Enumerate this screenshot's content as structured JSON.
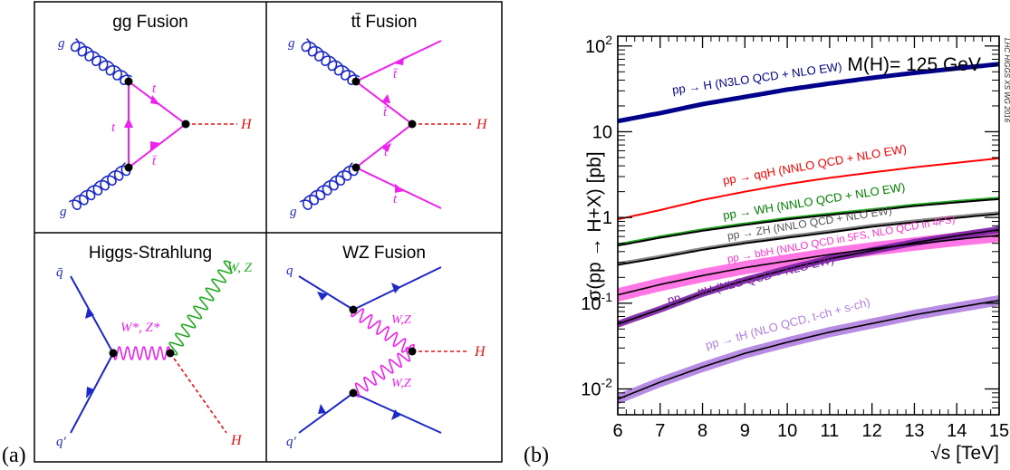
{
  "panel_a": {
    "label": "(a)",
    "diagrams": [
      {
        "title": "gg Fusion",
        "labels": {
          "g_top": "g",
          "g_bottom": "g",
          "t_upper": "t",
          "t_left": "t",
          "tbar": "t̄",
          "H": "H"
        }
      },
      {
        "title": "tt̄ Fusion",
        "labels": {
          "g_top": "g",
          "g_bottom": "g",
          "tbar_upper": "t̄",
          "tbar_lower": "t̄",
          "t_upper": "t",
          "t_lower": "t",
          "H": "H"
        }
      },
      {
        "title": "Higgs-Strahlung",
        "labels": {
          "qbar": "q̄",
          "qprime": "q′",
          "W_star": "W*, Z*",
          "W": "W, Z",
          "H": "H"
        }
      },
      {
        "title": "WZ Fusion",
        "labels": {
          "q": "q",
          "qprime": "q′",
          "W_upper": "W,Z",
          "W_lower": "W,Z",
          "H": "H"
        }
      }
    ]
  },
  "panel_b": {
    "label": "(b)",
    "annotation": "M(H)= 125 GeV",
    "side_text": "LHC HIGGS XS WG 2016",
    "colors": {
      "ggH": "#00008b",
      "qqH": "#ff0000",
      "WH": "#008000",
      "ZH": "#555555",
      "bbH": "#ff33cc",
      "ttH": "#7a1fa2",
      "tH": "#b07fe0"
    }
  },
  "chart_data": {
    "type": "line",
    "xlabel": "√s [TeV]",
    "ylabel": "σ(pp → H+X) [pb]",
    "xlim": [
      6,
      15
    ],
    "ylim": [
      0.005,
      130
    ],
    "yscale": "log",
    "x": [
      6,
      7,
      8,
      9,
      10,
      11,
      12,
      13,
      14,
      15
    ],
    "xticks": [
      "6",
      "7",
      "8",
      "9",
      "10",
      "11",
      "12",
      "13",
      "14",
      "15"
    ],
    "yticks": [
      {
        "mantissa": "10",
        "exp": "-2"
      },
      {
        "mantissa": "10",
        "exp": "-1"
      },
      {
        "mantissa": "1",
        "exp": ""
      },
      {
        "mantissa": "10",
        "exp": ""
      },
      {
        "mantissa": "10",
        "exp": "2"
      }
    ],
    "series": [
      {
        "key": "ggH",
        "name": "pp → H (N3LO QCD + NLO EW)",
        "values": [
          13.3,
          16.5,
          21.0,
          25.5,
          31.0,
          36.5,
          42.5,
          48.6,
          54.8,
          61.5
        ],
        "band": 0.06
      },
      {
        "key": "qqH",
        "name": "pp → qqH (NNLO QCD + NLO EW)",
        "values": [
          0.95,
          1.22,
          1.6,
          2.0,
          2.45,
          2.9,
          3.35,
          3.85,
          4.35,
          4.9
        ],
        "band": 0.01
      },
      {
        "key": "WH",
        "name": "pp → WH (NNLO QCD + NLO EW)",
        "values": [
          0.47,
          0.58,
          0.7,
          0.82,
          0.95,
          1.07,
          1.2,
          1.36,
          1.5,
          1.64
        ],
        "band": 0.015
      },
      {
        "key": "ZH",
        "name": "pp → ZH (NNLO QCD + NLO EW)",
        "values": [
          0.28,
          0.34,
          0.42,
          0.5,
          0.58,
          0.67,
          0.78,
          0.88,
          0.99,
          1.1
        ],
        "band": 0.03
      },
      {
        "key": "bbH",
        "name": "pp → bbH (NNLO QCD in 5FS, NLO QCD in 4FS)",
        "values": [
          0.125,
          0.165,
          0.21,
          0.26,
          0.31,
          0.37,
          0.43,
          0.49,
          0.555,
          0.62
        ],
        "band": 0.2
      },
      {
        "key": "ttH",
        "name": "pp → ttH (NLO QCD + NLO EW)",
        "values": [
          0.057,
          0.085,
          0.13,
          0.185,
          0.25,
          0.33,
          0.41,
          0.51,
          0.61,
          0.72
        ],
        "band": 0.1
      },
      {
        "key": "tH",
        "name": "pp → tH (NLO QCD, t-ch + s-ch)",
        "values": [
          0.0076,
          0.012,
          0.018,
          0.026,
          0.035,
          0.046,
          0.058,
          0.073,
          0.089,
          0.108
        ],
        "band": 0.15
      }
    ]
  }
}
